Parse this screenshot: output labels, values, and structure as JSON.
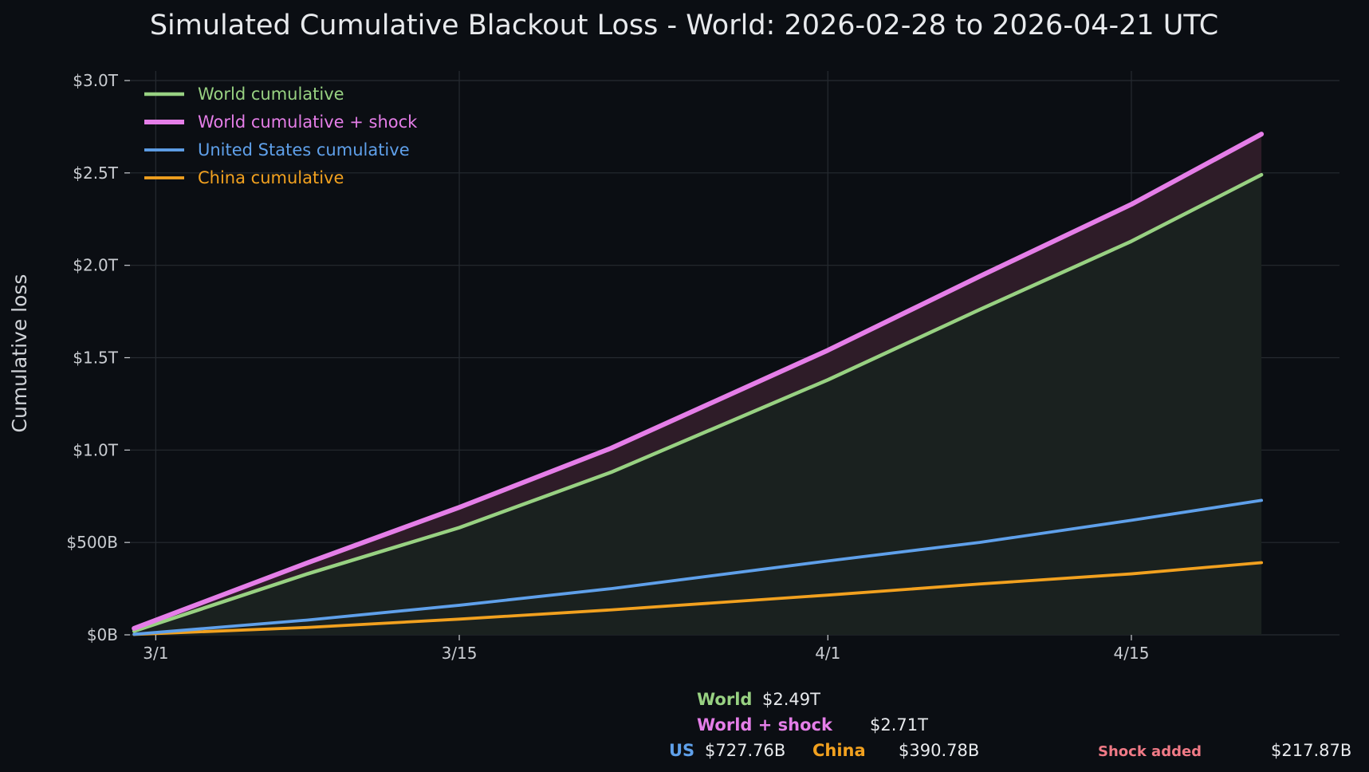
{
  "chart_data": {
    "type": "line",
    "title": "Simulated Cumulative Blackout Loss - World: 2026-02-28 to 2026-04-21 UTC",
    "ylabel": "Cumulative loss",
    "xlabel": "",
    "x_range": [
      "2026-02-28",
      "2026-04-21"
    ],
    "ylim": [
      0,
      3000
    ],
    "y_unit": "billions USD",
    "y_ticks": [
      {
        "value": 0,
        "label": "$0B"
      },
      {
        "value": 500,
        "label": "$500B"
      },
      {
        "value": 1000,
        "label": "$1.0T"
      },
      {
        "value": 1500,
        "label": "$1.5T"
      },
      {
        "value": 2000,
        "label": "$2.0T"
      },
      {
        "value": 2500,
        "label": "$2.5T"
      },
      {
        "value": 3000,
        "label": "$3.0T"
      }
    ],
    "x_ticks": [
      {
        "date": "2026-03-01",
        "label": "3/1"
      },
      {
        "date": "2026-03-15",
        "label": "3/15"
      },
      {
        "date": "2026-04-01",
        "label": "4/1"
      },
      {
        "date": "2026-04-15",
        "label": "4/15"
      }
    ],
    "grid": true,
    "legend_position": "top-left",
    "x": [
      "2026-02-28",
      "2026-03-08",
      "2026-03-15",
      "2026-03-22",
      "2026-04-01",
      "2026-04-08",
      "2026-04-15",
      "2026-04-21"
    ],
    "series": [
      {
        "name": "World cumulative",
        "color": "#98d182",
        "width": 4.5,
        "fill": "#1a211f",
        "values": [
          20,
          330,
          580,
          880,
          1380,
          1760,
          2130,
          2490
        ]
      },
      {
        "name": "World cumulative + shock",
        "color": "#e57ee8",
        "width": 6,
        "fill": "#2e1c28",
        "values": [
          35,
          390,
          690,
          1010,
          1540,
          1940,
          2330,
          2710
        ]
      },
      {
        "name": "United States cumulative",
        "color": "#5fa0ea",
        "width": 3.8,
        "values": [
          3,
          80,
          160,
          250,
          400,
          500,
          620,
          727.76
        ]
      },
      {
        "name": "China cumulative",
        "color": "#f2a11f",
        "width": 3.8,
        "values": [
          2,
          40,
          85,
          135,
          215,
          275,
          330,
          390.78
        ]
      }
    ]
  },
  "summary": {
    "world": {
      "label": "World",
      "value": "$2.49T",
      "color": "#98d182"
    },
    "world_shock": {
      "label": "World + shock",
      "value": "$2.71T",
      "color": "#e57ee8"
    },
    "us": {
      "label": "US",
      "value": "$727.76B",
      "color": "#5fa0ea"
    },
    "china": {
      "label": "China",
      "value": "$390.78B",
      "color": "#f2a11f"
    },
    "shock": {
      "label": "Shock added",
      "value": "$217.87B",
      "color": "#f07a86"
    }
  }
}
